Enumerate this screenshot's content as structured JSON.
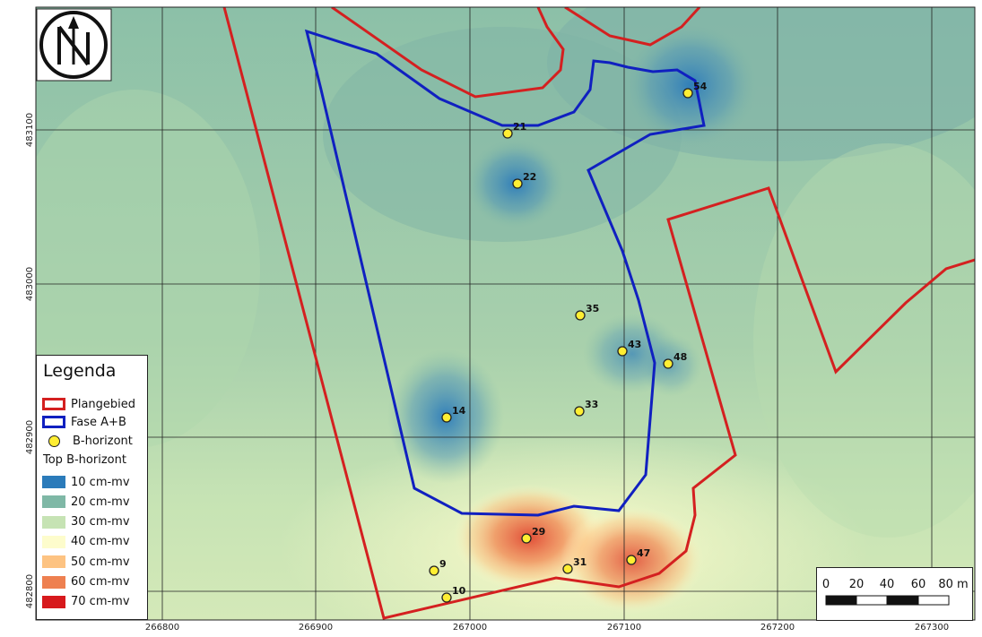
{
  "map": {
    "axis_x_ticks": [
      "266800",
      "266900",
      "267000",
      "267100",
      "267200",
      "267300"
    ],
    "axis_y_ticks": [
      "483100",
      "483000",
      "482900",
      "482800"
    ]
  },
  "north_arrow": {
    "icon": "north-arrow-icon"
  },
  "legend": {
    "title": "Legenda",
    "items": [
      {
        "label": "Plangebied",
        "symbol": "polygon-outline",
        "color": "#d42020"
      },
      {
        "label": "Fase A+B",
        "symbol": "polygon-outline",
        "color": "#1020c0"
      },
      {
        "label": "B-horizont",
        "symbol": "point",
        "color": "#ffee33"
      }
    ],
    "ramp_title": "Top B-horizont",
    "ramp": [
      {
        "label": "10 cm-mv",
        "color": "#2b7bba"
      },
      {
        "label": "20 cm-mv",
        "color": "#7fb8a6"
      },
      {
        "label": "30 cm-mv",
        "color": "#c6e3b4"
      },
      {
        "label": "40 cm-mv",
        "color": "#fdfccc"
      },
      {
        "label": "50 cm-mv",
        "color": "#fdc382"
      },
      {
        "label": "60 cm-mv",
        "color": "#ee8050"
      },
      {
        "label": "70 cm-mv",
        "color": "#d7191c"
      }
    ]
  },
  "points": [
    "54",
    "21",
    "22",
    "35",
    "43",
    "48",
    "33",
    "14",
    "29",
    "47",
    "31",
    "9",
    "10"
  ],
  "scale_bar": {
    "labels": [
      "0",
      "20",
      "40",
      "60",
      "80 m"
    ]
  }
}
